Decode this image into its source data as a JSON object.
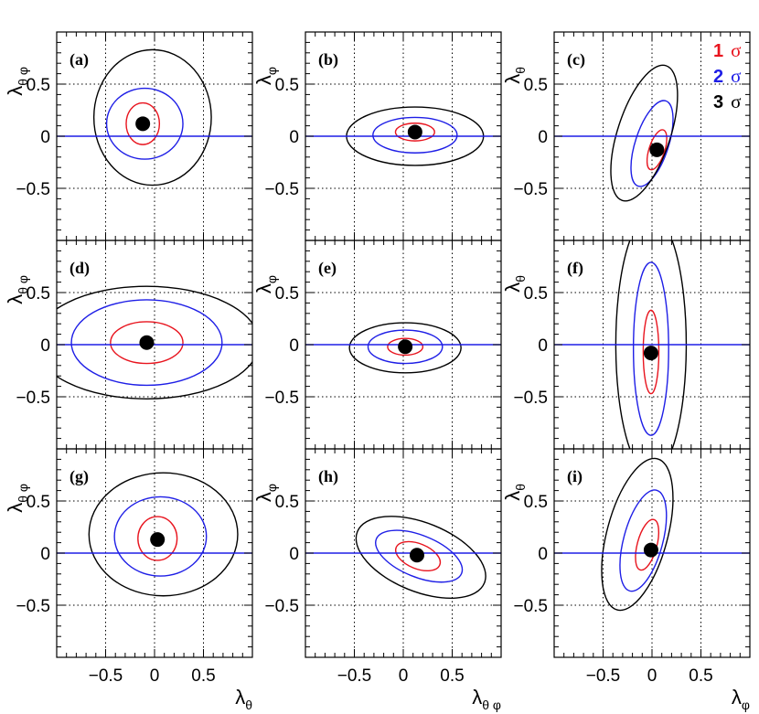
{
  "chart_data": {
    "type": "scatter",
    "description_kind": "contour grid",
    "axis_range": [
      -1,
      1
    ],
    "tick_values": [
      -0.5,
      0,
      0.5
    ],
    "tick_labels": [
      "−0.5",
      "0",
      "0.5"
    ],
    "grid": true,
    "legend": {
      "placement": "top-right of panel (c)",
      "entries": [
        {
          "num": "1",
          "sym": "σ",
          "color": "#e8141e"
        },
        {
          "num": "2",
          "sym": "σ",
          "color": "#1e1ee6"
        },
        {
          "num": "3",
          "sym": "σ",
          "color": "#000000"
        }
      ]
    },
    "column_xlabels": [
      {
        "sym": "λ",
        "sub": "θ"
      },
      {
        "sym": "λ",
        "sub": "θ φ"
      },
      {
        "sym": "λ",
        "sub": "φ"
      }
    ],
    "panels": [
      {
        "tag": "(a)",
        "ylabel": {
          "sym": "λ",
          "sub": "θ φ"
        },
        "point": [
          -0.12,
          0.12
        ],
        "contours": [
          {
            "level": 1,
            "cx": -0.12,
            "cy": 0.12,
            "rx": 0.17,
            "ry": 0.2,
            "angle": 0
          },
          {
            "level": 2,
            "cx": -0.1,
            "cy": 0.12,
            "rx": 0.39,
            "ry": 0.34,
            "angle": 0
          },
          {
            "level": 3,
            "cx": -0.02,
            "cy": 0.18,
            "rx": 0.6,
            "ry": 0.65,
            "angle": 0
          }
        ]
      },
      {
        "tag": "(b)",
        "ylabel": {
          "sym": "λ",
          "sub": "φ"
        },
        "point": [
          0.12,
          0.04
        ],
        "contours": [
          {
            "level": 1,
            "cx": 0.12,
            "cy": 0.04,
            "rx": 0.2,
            "ry": 0.085,
            "angle": 0
          },
          {
            "level": 2,
            "cx": 0.12,
            "cy": 0.01,
            "rx": 0.43,
            "ry": 0.17,
            "angle": 0
          },
          {
            "level": 3,
            "cx": 0.12,
            "cy": 0.0,
            "rx": 0.7,
            "ry": 0.28,
            "angle": 0
          }
        ]
      },
      {
        "tag": "(c)",
        "ylabel": {
          "sym": "λ",
          "sub": "θ"
        },
        "point": [
          0.05,
          -0.13
        ],
        "contours": [
          {
            "level": 1,
            "cx": 0.05,
            "cy": -0.13,
            "rx": 0.08,
            "ry": 0.2,
            "angle": 18
          },
          {
            "level": 2,
            "cx": 0.0,
            "cy": -0.07,
            "rx": 0.17,
            "ry": 0.43,
            "angle": 18
          },
          {
            "level": 3,
            "cx": -0.08,
            "cy": 0.03,
            "rx": 0.27,
            "ry": 0.68,
            "angle": 18
          }
        ]
      },
      {
        "tag": "(d)",
        "ylabel": {
          "sym": "λ",
          "sub": "θ φ"
        },
        "point": [
          -0.08,
          0.02
        ],
        "contours": [
          {
            "level": 1,
            "cx": -0.08,
            "cy": 0.02,
            "rx": 0.37,
            "ry": 0.2,
            "angle": 0
          },
          {
            "level": 2,
            "cx": -0.08,
            "cy": 0.02,
            "rx": 0.77,
            "ry": 0.41,
            "angle": 0
          },
          {
            "level": 3,
            "cx": -0.08,
            "cy": 0.02,
            "rx": 1.15,
            "ry": 0.54,
            "angle": 0
          }
        ]
      },
      {
        "tag": "(e)",
        "ylabel": {
          "sym": "λ",
          "sub": "φ"
        },
        "point": [
          0.02,
          -0.02
        ],
        "contours": [
          {
            "level": 1,
            "cx": 0.02,
            "cy": -0.02,
            "rx": 0.18,
            "ry": 0.08,
            "angle": 0
          },
          {
            "level": 2,
            "cx": 0.02,
            "cy": -0.02,
            "rx": 0.38,
            "ry": 0.16,
            "angle": 0
          },
          {
            "level": 3,
            "cx": 0.02,
            "cy": -0.03,
            "rx": 0.57,
            "ry": 0.24,
            "angle": 0
          }
        ]
      },
      {
        "tag": "(f)",
        "ylabel": {
          "sym": "λ",
          "sub": "θ"
        },
        "point": [
          -0.01,
          -0.08
        ],
        "contours": [
          {
            "level": 1,
            "cx": -0.01,
            "cy": -0.07,
            "rx": 0.08,
            "ry": 0.4,
            "angle": 0
          },
          {
            "level": 2,
            "cx": -0.01,
            "cy": -0.04,
            "rx": 0.18,
            "ry": 0.83,
            "angle": 0
          },
          {
            "level": 3,
            "cx": -0.01,
            "cy": 0.0,
            "rx": 0.36,
            "ry": 1.25,
            "angle": 0
          }
        ]
      },
      {
        "tag": "(g)",
        "ylabel": {
          "sym": "λ",
          "sub": "θ φ"
        },
        "point": [
          0.03,
          0.13
        ],
        "contours": [
          {
            "level": 1,
            "cx": 0.03,
            "cy": 0.14,
            "rx": 0.2,
            "ry": 0.21,
            "angle": 0
          },
          {
            "level": 2,
            "cx": 0.06,
            "cy": 0.16,
            "rx": 0.47,
            "ry": 0.38,
            "angle": 0
          },
          {
            "level": 3,
            "cx": 0.09,
            "cy": 0.18,
            "rx": 0.76,
            "ry": 0.59,
            "angle": 0
          }
        ]
      },
      {
        "tag": "(h)",
        "ylabel": {
          "sym": "λ",
          "sub": "φ"
        },
        "point": [
          0.14,
          -0.02
        ],
        "contours": [
          {
            "level": 1,
            "cx": 0.15,
            "cy": -0.03,
            "rx": 0.24,
            "ry": 0.12,
            "angle": 22
          },
          {
            "level": 2,
            "cx": 0.16,
            "cy": -0.03,
            "rx": 0.47,
            "ry": 0.2,
            "angle": 22
          },
          {
            "level": 3,
            "cx": 0.18,
            "cy": -0.04,
            "rx": 0.7,
            "ry": 0.33,
            "angle": 22
          }
        ]
      },
      {
        "tag": "(i)",
        "ylabel": {
          "sym": "λ",
          "sub": "θ"
        },
        "point": [
          -0.01,
          0.03
        ],
        "contours": [
          {
            "level": 1,
            "cx": -0.05,
            "cy": 0.08,
            "rx": 0.1,
            "ry": 0.25,
            "angle": 15
          },
          {
            "level": 2,
            "cx": -0.09,
            "cy": 0.12,
            "rx": 0.2,
            "ry": 0.5,
            "angle": 15
          },
          {
            "level": 3,
            "cx": -0.15,
            "cy": 0.18,
            "rx": 0.31,
            "ry": 0.75,
            "angle": 15
          }
        ]
      }
    ],
    "colors": {
      "level1": "#e8141e",
      "level2": "#1e1ee6",
      "level3": "#000000",
      "zero_line": "#1e1ee6",
      "point": "#000000"
    }
  }
}
